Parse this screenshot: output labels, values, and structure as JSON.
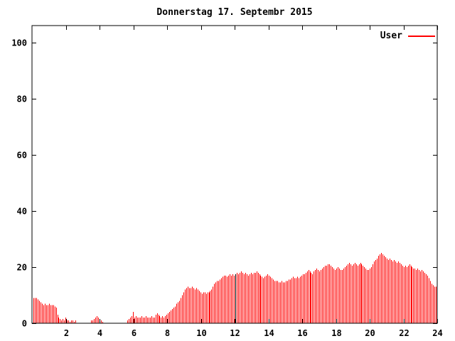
{
  "title": "Donnerstag 17. Septembr 2015",
  "legend": {
    "label": "User"
  },
  "colors": {
    "bar": "#ff0000",
    "special_bar": "#000000",
    "axis": "#000000",
    "background": "#ffffff"
  },
  "chart_data": {
    "type": "bar",
    "title": "Donnerstag 17. Septembr 2015",
    "series_name": "User",
    "xlabel": "",
    "ylabel": "",
    "xlim": [
      0,
      24
    ],
    "ylim": [
      0,
      100
    ],
    "x_ticks": [
      2,
      4,
      6,
      8,
      10,
      12,
      14,
      16,
      18,
      20,
      22,
      24
    ],
    "y_ticks": [
      0,
      20,
      40,
      60,
      80,
      100
    ],
    "grid": false,
    "legend_position": "top-right-inside",
    "x_unit": "hour-of-day",
    "sample_interval_minutes": 5,
    "special_black_bar_index": 144,
    "values": [
      9,
      9,
      9,
      8.5,
      8,
      7.5,
      7,
      6.5,
      7,
      6.5,
      6.5,
      7,
      6.5,
      6.5,
      6.5,
      6,
      5.5,
      3,
      2,
      1.5,
      1,
      1.5,
      1,
      2,
      1,
      1,
      0.5,
      1,
      1,
      0.5,
      1,
      0,
      0,
      0,
      0,
      0,
      0,
      0,
      0,
      0,
      0,
      1,
      1,
      1.5,
      2,
      2.5,
      2,
      1.5,
      1,
      0.5,
      0,
      0,
      0,
      0,
      0,
      0,
      0,
      0,
      0,
      0,
      0,
      0,
      0,
      0,
      0,
      0,
      0,
      1,
      1.5,
      2,
      2.5,
      4,
      2,
      2.5,
      2,
      2,
      2,
      2.5,
      2,
      2,
      2.5,
      2,
      2,
      2,
      2.5,
      2,
      2,
      3,
      3.5,
      3,
      2.5,
      2,
      2.5,
      2,
      2.5,
      3,
      3.5,
      4,
      4.5,
      5,
      5.5,
      6,
      7,
      7.5,
      8,
      9,
      10,
      11,
      12,
      12.5,
      13,
      12.5,
      12.5,
      13,
      12.5,
      12,
      12.5,
      12,
      11.5,
      11,
      10.5,
      11,
      11,
      10.5,
      11,
      11,
      11.5,
      12,
      13,
      14,
      14.5,
      15,
      15,
      15.5,
      16,
      16.5,
      17,
      17,
      16.5,
      17,
      17.5,
      17,
      17.5,
      17,
      17.5,
      18,
      17.5,
      18,
      18.5,
      18,
      17.5,
      18,
      17.5,
      17,
      17.5,
      18,
      17.5,
      18,
      18,
      18.5,
      18,
      17.5,
      17,
      16.5,
      16,
      16.5,
      17,
      17.5,
      17,
      16.5,
      16,
      15.5,
      15,
      15,
      15,
      14.5,
      14.5,
      15,
      14.5,
      14.5,
      15,
      15,
      15.5,
      15.5,
      16,
      16.5,
      16,
      16,
      16.5,
      16,
      16.5,
      17,
      17.5,
      17.5,
      18,
      18.5,
      19,
      18.5,
      18,
      17.5,
      18.5,
      19,
      19.5,
      19,
      18.5,
      19,
      19.5,
      20,
      20.5,
      20.5,
      21,
      21,
      20.5,
      20,
      19.5,
      19,
      19.5,
      20,
      19.5,
      19,
      19,
      19.5,
      20,
      20.5,
      21,
      21.5,
      21,
      20.5,
      21,
      21.5,
      21,
      20.5,
      21,
      21.5,
      21,
      20.5,
      20,
      19.5,
      19,
      19,
      19.5,
      20,
      21,
      22,
      22.5,
      23,
      24,
      24.5,
      25,
      24.5,
      24,
      23.5,
      23,
      22.5,
      23,
      22.5,
      22,
      22.5,
      22,
      21.5,
      22,
      21.5,
      21,
      20.5,
      20,
      20.5,
      20,
      20.5,
      21,
      20.5,
      20,
      19.5,
      19.5,
      19,
      19.5,
      19,
      18.5,
      19,
      18.5,
      18,
      17.5,
      17,
      16,
      15,
      14,
      13.5,
      13,
      13
    ]
  }
}
